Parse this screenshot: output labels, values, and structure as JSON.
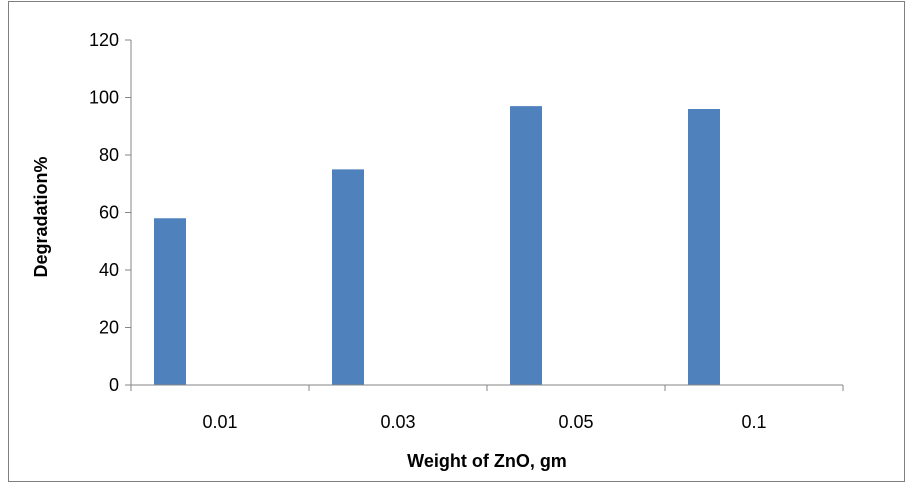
{
  "chart_data": {
    "type": "bar",
    "title": "",
    "xlabel": "Weight of ZnO, gm",
    "ylabel": "Degradation%",
    "categories": [
      "0.01",
      "0.03",
      "0.05",
      "0.1"
    ],
    "series": [
      {
        "values": [
          58,
          75,
          97,
          96
        ],
        "color": "#4f81bd"
      }
    ],
    "ylim": [
      0,
      120
    ],
    "yticks": [
      "0",
      "20",
      "40",
      "60",
      "80",
      "100",
      "120"
    ],
    "grid": false,
    "legend": "none"
  }
}
